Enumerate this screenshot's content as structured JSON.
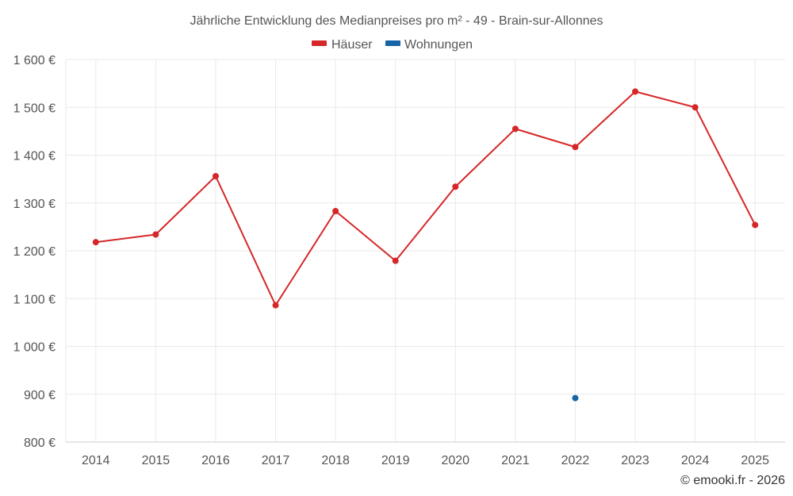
{
  "chart_data": {
    "type": "line",
    "title": "Jährliche Entwicklung des Medianpreises pro m² - 49 - Brain-sur-Allonnes",
    "categories": [
      "2014",
      "2015",
      "2016",
      "2017",
      "2018",
      "2019",
      "2020",
      "2021",
      "2022",
      "2023",
      "2024",
      "2025"
    ],
    "ylim": [
      800,
      1600
    ],
    "y_ticks": [
      800,
      900,
      1000,
      1100,
      1200,
      1300,
      1400,
      1500,
      1600
    ],
    "y_tick_labels": [
      "800 €",
      "900 €",
      "1 000 €",
      "1 100 €",
      "1 200 €",
      "1 300 €",
      "1 400 €",
      "1 500 €",
      "1 600 €"
    ],
    "grid": true,
    "legend_position": "top-center",
    "series": [
      {
        "name": "Häuser",
        "color": "#d62728",
        "values": [
          1218,
          1234,
          1356,
          1086,
          1283,
          1179,
          1334,
          1455,
          1417,
          1533,
          1500,
          1254
        ]
      },
      {
        "name": "Wohnungen",
        "color": "#1565a6",
        "values": [
          null,
          null,
          null,
          null,
          null,
          null,
          null,
          null,
          892,
          null,
          null,
          null
        ]
      }
    ]
  },
  "credit": "© emooki.fr - 2026"
}
